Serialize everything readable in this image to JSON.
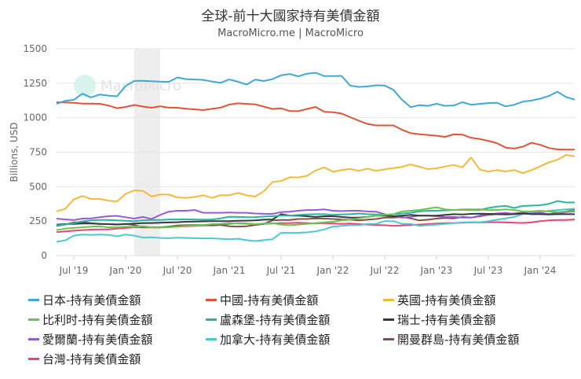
{
  "title": "全球-前十大國家持有美債金額",
  "subtitle": "MacroMicro.me | MacroMicro",
  "watermark": "MacroMicro",
  "chart_data": {
    "type": "line",
    "ylabel": "Billions, USD",
    "ylim": [
      0,
      1500
    ],
    "yticks": [
      "0",
      "250",
      "500",
      "750",
      "1000",
      "1250",
      "1500"
    ],
    "ytick_values": [
      0,
      250,
      500,
      750,
      1000,
      1250,
      1500
    ],
    "x_start": "2019-05",
    "x_end": "2024-05",
    "x_step": "monthly",
    "xticks": [
      {
        "label": "Jul '19",
        "date": "2019-07"
      },
      {
        "label": "Jan '20",
        "date": "2020-01"
      },
      {
        "label": "Jul '20",
        "date": "2020-07"
      },
      {
        "label": "Jan '21",
        "date": "2021-01"
      },
      {
        "label": "Jul '21",
        "date": "2021-07"
      },
      {
        "label": "Jan '22",
        "date": "2022-01"
      },
      {
        "label": "Jul '22",
        "date": "2022-07"
      },
      {
        "label": "Jan '23",
        "date": "2023-01"
      },
      {
        "label": "Jul '23",
        "date": "2023-07"
      },
      {
        "label": "Jan '24",
        "date": "2024-01"
      }
    ],
    "shaded_period": [
      "2020-02",
      "2020-04"
    ],
    "grid": true,
    "legend": "bottom",
    "series": [
      {
        "name": "日本-持有美債金額",
        "color": "#3fa9d6",
        "values": [
          1101,
          1122,
          1130,
          1174,
          1147,
          1168,
          1160,
          1155,
          1230,
          1267,
          1268,
          1265,
          1261,
          1260,
          1292,
          1280,
          1277,
          1274,
          1262,
          1253,
          1277,
          1261,
          1240,
          1276,
          1266,
          1279,
          1307,
          1317,
          1300,
          1319,
          1326,
          1302,
          1302,
          1303,
          1233,
          1223,
          1227,
          1235,
          1233,
          1202,
          1130,
          1076,
          1091,
          1086,
          1101,
          1086,
          1089,
          1112,
          1094,
          1100,
          1106,
          1108,
          1082,
          1094,
          1116,
          1124,
          1138,
          1157,
          1188,
          1150,
          1131
        ]
      },
      {
        "name": "中國-持有美債金額",
        "color": "#e0553a",
        "values": [
          1112,
          1110,
          1108,
          1102,
          1102,
          1101,
          1088,
          1069,
          1078,
          1092,
          1081,
          1072,
          1083,
          1073,
          1072,
          1065,
          1060,
          1055,
          1064,
          1073,
          1095,
          1104,
          1100,
          1097,
          1080,
          1063,
          1068,
          1048,
          1047,
          1063,
          1078,
          1043,
          1040,
          1030,
          1004,
          978,
          955,
          944,
          944,
          944,
          913,
          888,
          880,
          875,
          869,
          861,
          879,
          877,
          854,
          845,
          832,
          815,
          783,
          776,
          790,
          818,
          803,
          780,
          770,
          768,
          768
        ]
      },
      {
        "name": "英國-持有美債金額",
        "color": "#f5b93a",
        "values": [
          321,
          338,
          407,
          432,
          410,
          411,
          398,
          392,
          448,
          473,
          469,
          428,
          443,
          442,
          422,
          418,
          425,
          437,
          418,
          438,
          437,
          454,
          437,
          428,
          466,
          533,
          540,
          568,
          567,
          578,
          617,
          640,
          608,
          620,
          628,
          614,
          630,
          614,
          625,
          635,
          643,
          661,
          645,
          627,
          633,
          646,
          657,
          640,
          711,
          624,
          609,
          620,
          610,
          620,
          598,
          620,
          648,
          675,
          695,
          730,
          720
        ]
      },
      {
        "name": "比利时-持有美債金額",
        "color": "#6cc34f",
        "values": [
          185,
          195,
          200,
          205,
          210,
          212,
          205,
          205,
          210,
          210,
          212,
          205,
          203,
          205,
          210,
          215,
          218,
          222,
          228,
          230,
          235,
          232,
          230,
          228,
          232,
          235,
          225,
          220,
          225,
          230,
          235,
          240,
          245,
          255,
          260,
          270,
          280,
          290,
          295,
          300,
          320,
          325,
          330,
          340,
          350,
          335,
          330,
          335,
          335,
          335,
          330,
          330,
          335,
          330,
          320,
          320,
          325,
          320,
          315,
          320,
          325
        ]
      },
      {
        "name": "盧森堡-持有美債金額",
        "color": "#2bb59a",
        "values": [
          220,
          225,
          235,
          248,
          255,
          258,
          258,
          255,
          252,
          250,
          255,
          258,
          258,
          262,
          262,
          263,
          262,
          260,
          262,
          270,
          282,
          280,
          278,
          279,
          283,
          285,
          290,
          290,
          295,
          298,
          300,
          300,
          295,
          298,
          300,
          305,
          300,
          298,
          295,
          300,
          305,
          310,
          320,
          325,
          325,
          328,
          330,
          332,
          330,
          330,
          345,
          355,
          360,
          345,
          360,
          362,
          365,
          375,
          395,
          385,
          385
        ]
      },
      {
        "name": "瑞士-持有美債金額",
        "color": "#333a44",
        "values": [
          225,
          228,
          230,
          232,
          232,
          230,
          228,
          226,
          228,
          232,
          235,
          236,
          238,
          240,
          242,
          245,
          247,
          248,
          250,
          250,
          250,
          252,
          253,
          255,
          260,
          262,
          300,
          290,
          290,
          285,
          280,
          285,
          285,
          280,
          275,
          275,
          280,
          290,
          290,
          285,
          290,
          295,
          290,
          290,
          290,
          295,
          300,
          298,
          302,
          304,
          302,
          300,
          298,
          300,
          305,
          300,
          300,
          298,
          300,
          300,
          300
        ]
      },
      {
        "name": "愛爾蘭-持有美債金額",
        "color": "#9b59d6",
        "values": [
          268,
          262,
          258,
          268,
          270,
          278,
          285,
          288,
          278,
          268,
          280,
          265,
          295,
          318,
          325,
          325,
          330,
          310,
          310,
          310,
          312,
          310,
          310,
          305,
          303,
          302,
          315,
          318,
          325,
          330,
          330,
          335,
          325,
          322,
          325,
          325,
          320,
          318,
          300,
          285,
          275,
          280,
          290,
          290,
          285,
          280,
          280,
          275,
          275,
          290,
          300,
          305,
          310,
          300,
          305,
          305,
          310,
          300,
          305,
          315,
          320
        ]
      },
      {
        "name": "加拿大-持有美債金額",
        "color": "#4cc9d0",
        "values": [
          100,
          110,
          145,
          152,
          150,
          152,
          150,
          140,
          152,
          145,
          130,
          133,
          128,
          126,
          130,
          128,
          126,
          125,
          125,
          122,
          118,
          122,
          112,
          105,
          112,
          118,
          165,
          165,
          165,
          168,
          175,
          190,
          210,
          215,
          220,
          220,
          230,
          230,
          250,
          250,
          230,
          230,
          215,
          220,
          225,
          230,
          235,
          240,
          240,
          240,
          250,
          260,
          270,
          280,
          300,
          310,
          315,
          325,
          330,
          335,
          340
        ]
      },
      {
        "name": "開曼群島-持有美債金額",
        "color": "#7a5548",
        "values": [
          215,
          225,
          240,
          242,
          235,
          230,
          228,
          225,
          230,
          222,
          205,
          205,
          205,
          210,
          218,
          220,
          222,
          220,
          218,
          222,
          212,
          210,
          212,
          222,
          230,
          255,
          258,
          258,
          265,
          265,
          270,
          268,
          265,
          262,
          260,
          255,
          260,
          265,
          275,
          275,
          280,
          270,
          255,
          260,
          268,
          272,
          270,
          280,
          275,
          285,
          295,
          300,
          300,
          305,
          310,
          305,
          305,
          300,
          310,
          320,
          335
        ]
      },
      {
        "name": "台灣-持有美債金額",
        "color": "#e8457a",
        "values": [
          170,
          175,
          180,
          185,
          188,
          190,
          190,
          195,
          200,
          205,
          205,
          205,
          205,
          208,
          210,
          212,
          215,
          218,
          220,
          225,
          230,
          235,
          232,
          228,
          230,
          232,
          235,
          235,
          238,
          235,
          232,
          235,
          232,
          230,
          232,
          228,
          225,
          222,
          220,
          215,
          218,
          222,
          225,
          228,
          232,
          235,
          235,
          238,
          240,
          240,
          242,
          242,
          240,
          238,
          236,
          240,
          250,
          255,
          258,
          258,
          262
        ]
      }
    ]
  }
}
